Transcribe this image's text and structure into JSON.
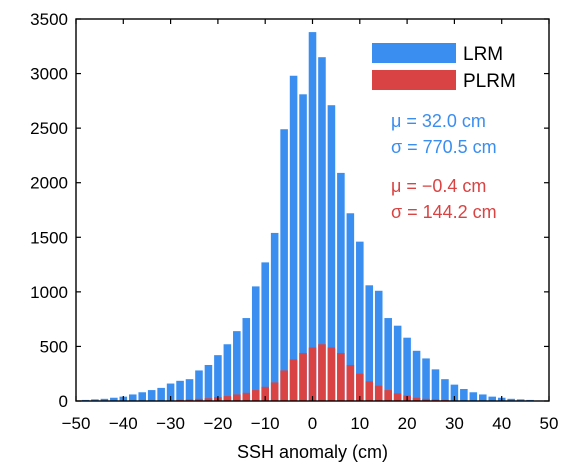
{
  "chart_data": {
    "type": "bar",
    "xlabel": "SSH anomaly (cm)",
    "ylabel": "",
    "xlim": [
      -50,
      50
    ],
    "ylim": [
      0,
      3500
    ],
    "xticks": [
      "−50",
      "−40",
      "−30",
      "−20",
      "−10",
      "0",
      "10",
      "20",
      "30",
      "40",
      "50"
    ],
    "yticks": [
      "0",
      "500",
      "1000",
      "1500",
      "2000",
      "2500",
      "3000",
      "3500"
    ],
    "grid": false,
    "legend_position": "top-right",
    "x": [
      -48,
      -46,
      -44,
      -42,
      -40,
      -38,
      -36,
      -34,
      -32,
      -30,
      -28,
      -26,
      -24,
      -22,
      -20,
      -18,
      -16,
      -14,
      -12,
      -10,
      -8,
      -6,
      -4,
      -2,
      0,
      2,
      4,
      6,
      8,
      10,
      12,
      14,
      16,
      18,
      20,
      22,
      24,
      26,
      28,
      30,
      32,
      34,
      36,
      38,
      40,
      42,
      44,
      46,
      48
    ],
    "bar_width": 1.6,
    "series": [
      {
        "name": "LRM",
        "color": "#3a8ef0",
        "values": [
          10,
          15,
          20,
          30,
          40,
          60,
          80,
          100,
          120,
          160,
          185,
          200,
          280,
          330,
          420,
          520,
          640,
          760,
          1050,
          1270,
          1540,
          2490,
          2980,
          2810,
          3380,
          3150,
          2710,
          2090,
          1720,
          1460,
          1060,
          1010,
          760,
          690,
          580,
          460,
          390,
          290,
          200,
          150,
          110,
          80,
          60,
          40,
          30,
          20,
          15,
          10,
          5
        ]
      },
      {
        "name": "PLRM",
        "color": "#d94343",
        "values": [
          0,
          0,
          0,
          0,
          0,
          0,
          0,
          0,
          0,
          5,
          10,
          15,
          20,
          25,
          35,
          45,
          60,
          75,
          100,
          130,
          170,
          280,
          380,
          440,
          490,
          520,
          490,
          440,
          330,
          250,
          180,
          140,
          100,
          70,
          50,
          30,
          20,
          15,
          10,
          5,
          0,
          0,
          0,
          0,
          0,
          0,
          0,
          0,
          0
        ]
      }
    ],
    "annotations": [
      {
        "text": "μ = 32.0 cm",
        "color": "#3a8ef0"
      },
      {
        "text": "σ = 770.5 cm",
        "color": "#3a8ef0"
      },
      {
        "text": "μ = −0.4 cm",
        "color": "#d94343"
      },
      {
        "text": "σ = 144.2 cm",
        "color": "#d94343"
      }
    ]
  }
}
